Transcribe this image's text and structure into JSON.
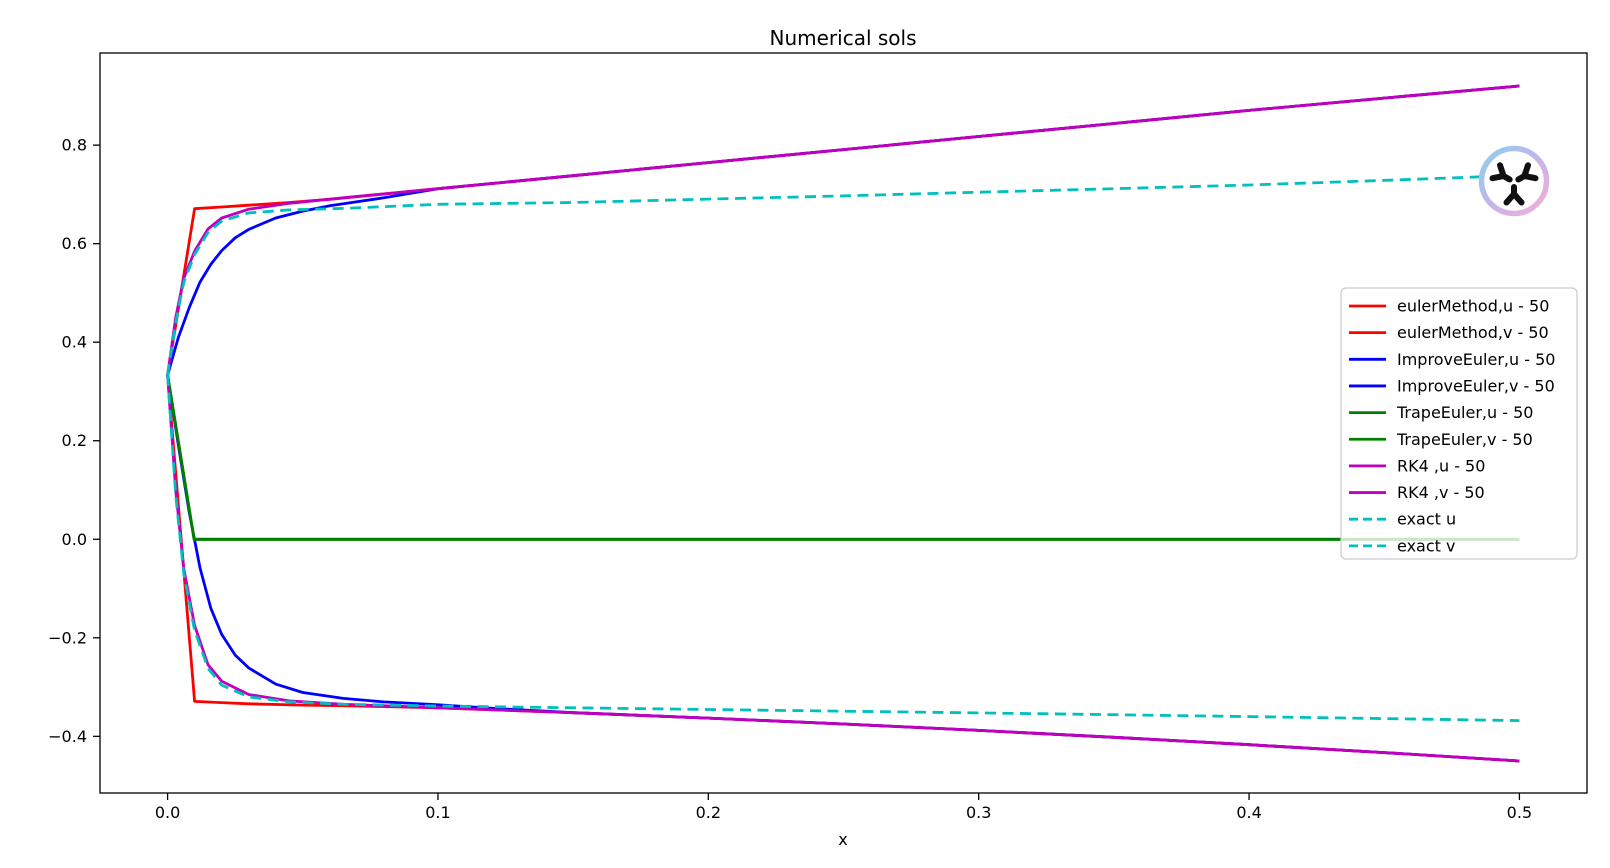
{
  "chart": {
    "title": "Numerical sols",
    "xlabel": "x"
  },
  "colors": {
    "red": "#ff0000",
    "blue": "#0000ff",
    "green": "#008000",
    "magenta": "#bf00bf",
    "cyan": "#00bfbf",
    "axis": "#000000",
    "legend_border": "#cccccc",
    "logo_ring_blue": "#8ecfee",
    "logo_ring_lavender": "#c3b5ec",
    "logo_ring_pink": "#f5aed6",
    "logo_glyph": "#111111"
  },
  "logo": {
    "icon": "trefoil-logo-icon"
  },
  "chart_data": {
    "type": "line",
    "title": "Numerical sols",
    "xlabel": "x",
    "ylabel": "",
    "grid": false,
    "legend_position": "center-right",
    "xlim": [
      -0.025,
      0.525
    ],
    "ylim": [
      -0.515,
      0.987
    ],
    "x_ticks": [
      0.0,
      0.1,
      0.2,
      0.3,
      0.4,
      0.5
    ],
    "x_tick_labels": [
      "0.0",
      "0.1",
      "0.2",
      "0.3",
      "0.4",
      "0.5"
    ],
    "y_ticks": [
      0.8,
      0.6,
      0.4,
      0.2,
      0.0,
      -0.2,
      -0.4
    ],
    "y_tick_labels": [
      "0.8",
      "0.6",
      "0.4",
      "0.2",
      "0.0",
      "−0.2",
      "−0.4"
    ],
    "series": [
      {
        "label": "eulerMethod,u - 50",
        "color": "red",
        "dash": false,
        "points": [
          [
            0,
            0.3333
          ],
          [
            0.01,
            0.671
          ],
          [
            0.02,
            0.6745
          ],
          [
            0.03,
            0.678
          ],
          [
            0.045,
            0.6835
          ],
          [
            0.06,
            0.69
          ],
          [
            0.1,
            0.7115
          ],
          [
            0.15,
            0.738
          ],
          [
            0.2,
            0.7645
          ],
          [
            0.25,
            0.791
          ],
          [
            0.3,
            0.8175
          ],
          [
            0.35,
            0.844
          ],
          [
            0.4,
            0.8705
          ],
          [
            0.45,
            0.8955
          ],
          [
            0.5,
            0.92
          ]
        ]
      },
      {
        "label": "eulerMethod,v - 50",
        "color": "red",
        "dash": false,
        "points": [
          [
            0,
            0.3333
          ],
          [
            0.01,
            -0.329
          ],
          [
            0.02,
            -0.3315
          ],
          [
            0.03,
            -0.334
          ],
          [
            0.05,
            -0.3365
          ],
          [
            0.07,
            -0.3385
          ],
          [
            0.1,
            -0.342
          ],
          [
            0.15,
            -0.352
          ],
          [
            0.2,
            -0.363
          ],
          [
            0.25,
            -0.375
          ],
          [
            0.3,
            -0.388
          ],
          [
            0.35,
            -0.402
          ],
          [
            0.4,
            -0.417
          ],
          [
            0.45,
            -0.433
          ],
          [
            0.5,
            -0.45
          ]
        ]
      },
      {
        "label": "ImproveEuler,u - 50",
        "color": "blue",
        "dash": false,
        "points": [
          [
            0,
            0.3333
          ],
          [
            0.004,
            0.41
          ],
          [
            0.008,
            0.47
          ],
          [
            0.012,
            0.522
          ],
          [
            0.016,
            0.558
          ],
          [
            0.02,
            0.586
          ],
          [
            0.025,
            0.612
          ],
          [
            0.03,
            0.629
          ],
          [
            0.04,
            0.652
          ],
          [
            0.05,
            0.666
          ],
          [
            0.06,
            0.677
          ],
          [
            0.08,
            0.693
          ],
          [
            0.1,
            0.7115
          ],
          [
            0.15,
            0.738
          ],
          [
            0.2,
            0.7645
          ],
          [
            0.25,
            0.791
          ],
          [
            0.3,
            0.8175
          ],
          [
            0.35,
            0.844
          ],
          [
            0.4,
            0.8705
          ],
          [
            0.45,
            0.8955
          ],
          [
            0.5,
            0.92
          ]
        ]
      },
      {
        "label": "ImproveEuler,v - 50",
        "color": "blue",
        "dash": false,
        "points": [
          [
            0,
            0.3333
          ],
          [
            0.004,
            0.19
          ],
          [
            0.008,
            0.055
          ],
          [
            0.012,
            -0.058
          ],
          [
            0.016,
            -0.14
          ],
          [
            0.02,
            -0.193
          ],
          [
            0.025,
            -0.235
          ],
          [
            0.03,
            -0.261
          ],
          [
            0.04,
            -0.294
          ],
          [
            0.05,
            -0.311
          ],
          [
            0.065,
            -0.323
          ],
          [
            0.08,
            -0.33
          ],
          [
            0.1,
            -0.336
          ],
          [
            0.12,
            -0.343
          ],
          [
            0.15,
            -0.352
          ],
          [
            0.2,
            -0.363
          ],
          [
            0.25,
            -0.375
          ],
          [
            0.3,
            -0.388
          ],
          [
            0.35,
            -0.402
          ],
          [
            0.4,
            -0.417
          ],
          [
            0.45,
            -0.433
          ],
          [
            0.5,
            -0.45
          ]
        ]
      },
      {
        "label": "TrapeEuler,u - 50",
        "color": "green",
        "dash": false,
        "points": [
          [
            0,
            0.3333
          ],
          [
            0.0098,
            0.0
          ],
          [
            0.5,
            0.0
          ]
        ]
      },
      {
        "label": "TrapeEuler,v - 50",
        "color": "green",
        "dash": false,
        "points": [
          [
            0,
            0.3333
          ],
          [
            0.0098,
            0.0
          ],
          [
            0.5,
            0.0
          ]
        ]
      },
      {
        "label": "RK4 ,u - 50",
        "color": "magenta",
        "dash": false,
        "points": [
          [
            0,
            0.3333
          ],
          [
            0.003,
            0.45
          ],
          [
            0.006,
            0.53
          ],
          [
            0.01,
            0.585
          ],
          [
            0.015,
            0.63
          ],
          [
            0.02,
            0.652
          ],
          [
            0.03,
            0.67
          ],
          [
            0.045,
            0.682
          ],
          [
            0.065,
            0.693
          ],
          [
            0.1,
            0.7115
          ],
          [
            0.15,
            0.738
          ],
          [
            0.2,
            0.7645
          ],
          [
            0.25,
            0.791
          ],
          [
            0.3,
            0.8175
          ],
          [
            0.35,
            0.844
          ],
          [
            0.4,
            0.8705
          ],
          [
            0.45,
            0.8955
          ],
          [
            0.5,
            0.92
          ]
        ]
      },
      {
        "label": "RK4 ,v - 50",
        "color": "magenta",
        "dash": false,
        "points": [
          [
            0,
            0.3333
          ],
          [
            0.003,
            0.1
          ],
          [
            0.006,
            -0.06
          ],
          [
            0.01,
            -0.175
          ],
          [
            0.015,
            -0.255
          ],
          [
            0.02,
            -0.288
          ],
          [
            0.03,
            -0.315
          ],
          [
            0.045,
            -0.328
          ],
          [
            0.065,
            -0.335
          ],
          [
            0.1,
            -0.342
          ],
          [
            0.15,
            -0.352
          ],
          [
            0.2,
            -0.363
          ],
          [
            0.25,
            -0.375
          ],
          [
            0.3,
            -0.388
          ],
          [
            0.35,
            -0.402
          ],
          [
            0.4,
            -0.417
          ],
          [
            0.45,
            -0.433
          ],
          [
            0.5,
            -0.45
          ]
        ]
      },
      {
        "label": "exact u",
        "color": "cyan",
        "dash": true,
        "points": [
          [
            0,
            0.3333
          ],
          [
            0.003,
            0.44
          ],
          [
            0.006,
            0.522
          ],
          [
            0.01,
            0.578
          ],
          [
            0.015,
            0.623
          ],
          [
            0.02,
            0.646
          ],
          [
            0.03,
            0.6625
          ],
          [
            0.045,
            0.6685
          ],
          [
            0.065,
            0.6715
          ],
          [
            0.1,
            0.68
          ],
          [
            0.15,
            0.6835
          ],
          [
            0.2,
            0.6905
          ],
          [
            0.25,
            0.697
          ],
          [
            0.3,
            0.7045
          ],
          [
            0.35,
            0.7115
          ],
          [
            0.4,
            0.719
          ],
          [
            0.45,
            0.7285
          ],
          [
            0.5,
            0.7385
          ]
        ]
      },
      {
        "label": "exact v",
        "color": "cyan",
        "dash": true,
        "points": [
          [
            0,
            0.3333
          ],
          [
            0.003,
            0.09
          ],
          [
            0.006,
            -0.07
          ],
          [
            0.01,
            -0.185
          ],
          [
            0.015,
            -0.262
          ],
          [
            0.02,
            -0.296
          ],
          [
            0.03,
            -0.32
          ],
          [
            0.045,
            -0.33
          ],
          [
            0.065,
            -0.335
          ],
          [
            0.1,
            -0.3385
          ],
          [
            0.15,
            -0.342
          ],
          [
            0.2,
            -0.3455
          ],
          [
            0.25,
            -0.349
          ],
          [
            0.3,
            -0.3525
          ],
          [
            0.35,
            -0.356
          ],
          [
            0.4,
            -0.36
          ],
          [
            0.45,
            -0.364
          ],
          [
            0.5,
            -0.368
          ]
        ]
      }
    ]
  }
}
